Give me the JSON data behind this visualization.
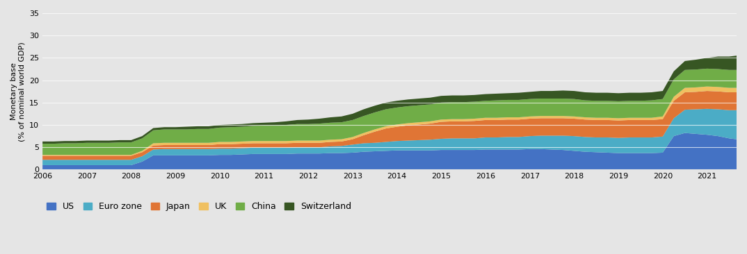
{
  "ylabel": "Monetary base\n(% of nominal world GDP)",
  "ylim": [
    0,
    35
  ],
  "yticks": [
    0,
    5,
    10,
    15,
    20,
    25,
    30,
    35
  ],
  "background_color": "#e5e5e5",
  "plot_bg_color": "#e5e5e5",
  "legend_labels": [
    "US",
    "Euro zone",
    "Japan",
    "UK",
    "China",
    "Switzerland"
  ],
  "colors": [
    "#4472c4",
    "#4bacc6",
    "#e07535",
    "#f0c060",
    "#70ad47",
    "#375623"
  ],
  "years": [
    2006.0,
    2006.25,
    2006.5,
    2006.75,
    2007.0,
    2007.25,
    2007.5,
    2007.75,
    2008.0,
    2008.25,
    2008.5,
    2008.75,
    2009.0,
    2009.25,
    2009.5,
    2009.75,
    2010.0,
    2010.25,
    2010.5,
    2010.75,
    2011.0,
    2011.25,
    2011.5,
    2011.75,
    2012.0,
    2012.25,
    2012.5,
    2012.75,
    2013.0,
    2013.25,
    2013.5,
    2013.75,
    2014.0,
    2014.25,
    2014.5,
    2014.75,
    2015.0,
    2015.25,
    2015.5,
    2015.75,
    2016.0,
    2016.25,
    2016.5,
    2016.75,
    2017.0,
    2017.25,
    2017.5,
    2017.75,
    2018.0,
    2018.25,
    2018.5,
    2018.75,
    2019.0,
    2019.25,
    2019.5,
    2019.75,
    2020.0,
    2020.25,
    2020.5,
    2020.75,
    2021.0,
    2021.25,
    2021.5,
    2021.667
  ],
  "us": [
    1.0,
    1.0,
    1.0,
    1.0,
    1.0,
    1.0,
    1.0,
    1.0,
    1.0,
    1.8,
    3.2,
    3.2,
    3.2,
    3.2,
    3.2,
    3.2,
    3.3,
    3.3,
    3.4,
    3.5,
    3.5,
    3.5,
    3.5,
    3.6,
    3.6,
    3.6,
    3.7,
    3.7,
    3.8,
    4.0,
    4.1,
    4.2,
    4.3,
    4.3,
    4.3,
    4.3,
    4.4,
    4.4,
    4.4,
    4.4,
    4.5,
    4.5,
    4.5,
    4.5,
    4.6,
    4.6,
    4.5,
    4.4,
    4.2,
    4.0,
    3.9,
    3.8,
    3.7,
    3.7,
    3.7,
    3.7,
    3.8,
    7.5,
    8.2,
    8.0,
    7.8,
    7.5,
    7.0,
    6.8
  ],
  "eurozone": [
    1.2,
    1.2,
    1.2,
    1.2,
    1.2,
    1.2,
    1.2,
    1.2,
    1.2,
    1.2,
    1.3,
    1.4,
    1.4,
    1.4,
    1.4,
    1.4,
    1.4,
    1.4,
    1.4,
    1.4,
    1.4,
    1.4,
    1.4,
    1.4,
    1.4,
    1.4,
    1.5,
    1.6,
    1.8,
    1.9,
    1.9,
    2.0,
    2.1,
    2.2,
    2.3,
    2.4,
    2.5,
    2.6,
    2.6,
    2.6,
    2.7,
    2.7,
    2.8,
    2.8,
    2.9,
    3.0,
    3.1,
    3.2,
    3.3,
    3.3,
    3.3,
    3.4,
    3.4,
    3.5,
    3.5,
    3.5,
    3.6,
    4.0,
    5.2,
    5.5,
    5.8,
    6.0,
    6.3,
    6.5
  ],
  "japan": [
    0.9,
    0.9,
    0.9,
    0.9,
    0.9,
    0.9,
    0.9,
    0.9,
    0.9,
    0.9,
    0.9,
    0.9,
    0.9,
    0.9,
    0.9,
    0.9,
    1.0,
    1.0,
    1.0,
    1.0,
    1.0,
    1.0,
    1.0,
    1.0,
    1.0,
    1.0,
    1.0,
    1.0,
    1.2,
    1.8,
    2.5,
    3.0,
    3.2,
    3.4,
    3.5,
    3.6,
    3.8,
    3.8,
    3.8,
    3.9,
    3.9,
    3.9,
    3.9,
    3.9,
    3.9,
    3.9,
    3.9,
    3.9,
    3.9,
    3.9,
    3.9,
    3.9,
    3.9,
    3.9,
    3.9,
    3.9,
    3.9,
    3.9,
    3.9,
    3.9,
    4.0,
    4.0,
    4.0,
    4.0
  ],
  "uk": [
    0.2,
    0.2,
    0.2,
    0.2,
    0.2,
    0.2,
    0.2,
    0.2,
    0.2,
    0.3,
    0.5,
    0.5,
    0.5,
    0.5,
    0.5,
    0.5,
    0.5,
    0.5,
    0.5,
    0.5,
    0.5,
    0.5,
    0.5,
    0.5,
    0.5,
    0.5,
    0.5,
    0.5,
    0.5,
    0.5,
    0.5,
    0.5,
    0.5,
    0.5,
    0.5,
    0.5,
    0.5,
    0.5,
    0.5,
    0.5,
    0.5,
    0.5,
    0.5,
    0.5,
    0.5,
    0.5,
    0.5,
    0.5,
    0.5,
    0.5,
    0.5,
    0.5,
    0.5,
    0.5,
    0.5,
    0.5,
    0.6,
    0.9,
    1.0,
    1.0,
    1.0,
    1.0,
    1.0,
    1.0
  ],
  "china": [
    2.5,
    2.5,
    2.6,
    2.6,
    2.7,
    2.7,
    2.7,
    2.8,
    2.8,
    2.8,
    2.9,
    3.0,
    3.0,
    3.0,
    3.1,
    3.1,
    3.2,
    3.3,
    3.3,
    3.4,
    3.5,
    3.5,
    3.6,
    3.7,
    3.7,
    3.8,
    3.8,
    3.8,
    3.8,
    3.8,
    3.8,
    3.8,
    3.8,
    3.8,
    3.8,
    3.8,
    3.8,
    3.8,
    3.8,
    3.8,
    3.8,
    3.9,
    3.9,
    3.9,
    3.9,
    3.9,
    3.9,
    3.9,
    3.9,
    3.8,
    3.8,
    3.8,
    3.8,
    3.8,
    3.8,
    3.9,
    3.9,
    3.9,
    4.0,
    4.0,
    4.0,
    4.0,
    4.0,
    4.0
  ],
  "switzerland": [
    0.5,
    0.5,
    0.5,
    0.5,
    0.5,
    0.5,
    0.5,
    0.5,
    0.5,
    0.5,
    0.5,
    0.5,
    0.5,
    0.6,
    0.6,
    0.6,
    0.6,
    0.6,
    0.6,
    0.6,
    0.6,
    0.7,
    0.8,
    0.9,
    1.0,
    1.1,
    1.2,
    1.3,
    1.4,
    1.5,
    1.5,
    1.5,
    1.5,
    1.5,
    1.5,
    1.5,
    1.5,
    1.5,
    1.5,
    1.5,
    1.5,
    1.5,
    1.5,
    1.6,
    1.6,
    1.7,
    1.7,
    1.8,
    1.8,
    1.8,
    1.8,
    1.8,
    1.8,
    1.8,
    1.8,
    1.8,
    1.8,
    1.8,
    2.0,
    2.2,
    2.4,
    2.8,
    3.0,
    3.2
  ]
}
